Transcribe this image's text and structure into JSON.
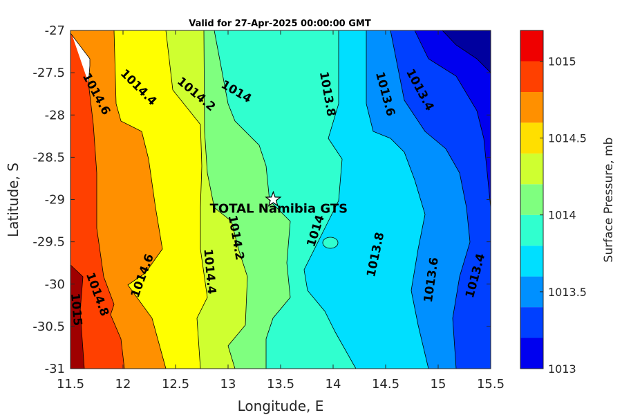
{
  "chart_data": {
    "type": "heatmap",
    "subtype": "filled-contour",
    "title": "Valid for 27-Apr-2025 00:00:00 GMT",
    "xlabel": "Longitude, E",
    "ylabel": "Latitude, S",
    "xlim": [
      11.5,
      15.5
    ],
    "ylim": [
      -31,
      -27
    ],
    "x_ticks": [
      "11.5",
      "12",
      "12.5",
      "13",
      "13.5",
      "14",
      "14.5",
      "15",
      "15.5"
    ],
    "y_ticks": [
      "-27",
      "-27.5",
      "-28",
      "-28.5",
      "-29",
      "-29.5",
      "-30",
      "-30.5",
      "-31"
    ],
    "colorbar": {
      "title": "Surface Pressure, mb",
      "range": [
        1013,
        1015.2
      ],
      "tick_labels": [
        "1015",
        "1014.5",
        "1014",
        "1013.5",
        "1013"
      ],
      "levels": [
        1013,
        1013.2,
        1013.4,
        1013.6,
        1013.8,
        1014,
        1014.2,
        1014.4,
        1014.6,
        1014.8,
        1015,
        1015.2
      ],
      "colors": [
        "#00009f",
        "#0000ef",
        "#0040ff",
        "#0090ff",
        "#00dfff",
        "#30ffcf",
        "#7fff7f",
        "#cfff30",
        "#ffdf00",
        "#ff9000",
        "#ff4000",
        "#ef0000",
        "#9f0000"
      ]
    },
    "contour_labels": [
      {
        "text": "1014.6",
        "lon": 11.75,
        "lat": -27.75
      },
      {
        "text": "1014.4",
        "lon": 12.15,
        "lat": -27.67
      },
      {
        "text": "1014.2",
        "lon": 12.7,
        "lat": -27.75
      },
      {
        "text": "1014",
        "lon": 13.08,
        "lat": -27.72
      },
      {
        "text": "1013.8",
        "lon": 13.95,
        "lat": -27.75
      },
      {
        "text": "1013.6",
        "lon": 14.5,
        "lat": -27.75
      },
      {
        "text": "1013.4",
        "lon": 14.83,
        "lat": -27.7
      },
      {
        "text": "1014.2",
        "lon": 13.08,
        "lat": -29.45
      },
      {
        "text": "1014",
        "lon": 13.83,
        "lat": -29.37
      },
      {
        "text": "1013.8",
        "lon": 14.4,
        "lat": -29.65
      },
      {
        "text": "1013.6",
        "lon": 14.93,
        "lat": -29.95
      },
      {
        "text": "1013.4",
        "lon": 15.35,
        "lat": -29.9
      },
      {
        "text": "1014.4",
        "lon": 12.83,
        "lat": -29.85
      },
      {
        "text": "1014.6",
        "lon": 12.18,
        "lat": -29.9
      },
      {
        "text": "1014.8",
        "lon": 11.76,
        "lat": -30.12
      },
      {
        "text": "1015",
        "lon": 11.56,
        "lat": -30.3
      }
    ],
    "station": {
      "name": "TOTAL Namibia GTS",
      "lon": 13.43,
      "lat": -29.0
    }
  }
}
